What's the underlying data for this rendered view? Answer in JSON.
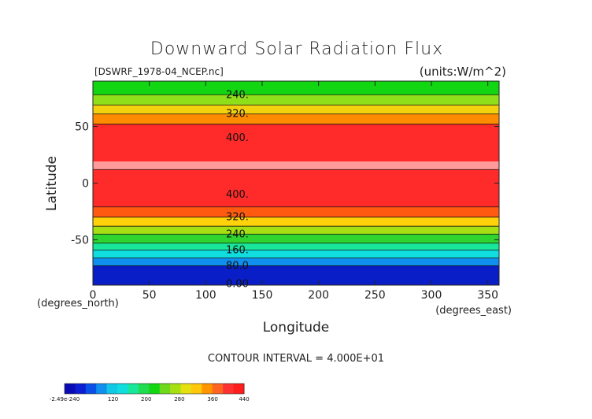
{
  "chart_data": {
    "type": "heatmap",
    "title": "Downward Solar Radiation Flux",
    "file_label": "[DSWRF_1978-04_NCEP.nc]",
    "units_label": "(units:W/m^2)",
    "xlabel": "Longitude",
    "ylabel": "Latitude",
    "x_unit_label": "(degrees_east)",
    "y_unit_label": "(degrees_north)",
    "xlim": [
      0,
      360
    ],
    "ylim": [
      -90,
      90
    ],
    "x_ticks": [
      "0",
      "50",
      "100",
      "150",
      "200",
      "250",
      "300",
      "350"
    ],
    "x_tick_values": [
      0,
      50,
      100,
      150,
      200,
      250,
      300,
      350
    ],
    "y_ticks": [
      "50",
      "0",
      "-50"
    ],
    "y_tick_values": [
      50,
      0,
      -50
    ],
    "contour_interval_text": "CONTOUR INTERVAL = 4.000E+01",
    "bands": [
      {
        "lat_top": 90,
        "lat_bottom": 78,
        "color": "#11d611"
      },
      {
        "lat_top": 78,
        "lat_bottom": 69,
        "color": "#8fe01a"
      },
      {
        "lat_top": 69,
        "lat_bottom": 61,
        "color": "#f3d10f"
      },
      {
        "lat_top": 61,
        "lat_bottom": 52,
        "color": "#ff8c00"
      },
      {
        "lat_top": 52,
        "lat_bottom": 19,
        "color": "#ff2a2a"
      },
      {
        "lat_top": 19,
        "lat_bottom": 12,
        "color": "#ff9a9a"
      },
      {
        "lat_top": 12,
        "lat_bottom": -21,
        "color": "#ff2a2a"
      },
      {
        "lat_top": -21,
        "lat_bottom": -30,
        "color": "#ff5a10"
      },
      {
        "lat_top": -30,
        "lat_bottom": -38,
        "color": "#ffd20a"
      },
      {
        "lat_top": -38,
        "lat_bottom": -45,
        "color": "#a6e012"
      },
      {
        "lat_top": -45,
        "lat_bottom": -53,
        "color": "#2fd42f"
      },
      {
        "lat_top": -53,
        "lat_bottom": -59,
        "color": "#18e69a"
      },
      {
        "lat_top": -59,
        "lat_bottom": -66,
        "color": "#10dede"
      },
      {
        "lat_top": -66,
        "lat_bottom": -73,
        "color": "#1090ee"
      },
      {
        "lat_top": -73,
        "lat_bottom": -90,
        "color": "#0a1ec8"
      }
    ],
    "contour_lines_lat": [
      78,
      69,
      61,
      52,
      12,
      -21,
      -30,
      -38,
      -45,
      -53,
      -59,
      -66,
      -73
    ],
    "contour_labels": [
      {
        "text": "240.",
        "lat": 78
      },
      {
        "text": "320.",
        "lat": 61
      },
      {
        "text": "400.",
        "lat": 40
      },
      {
        "text": "400.",
        "lat": -10
      },
      {
        "text": "320.",
        "lat": -30
      },
      {
        "text": "240.",
        "lat": -45
      },
      {
        "text": "160.",
        "lat": -59
      },
      {
        "text": "80.0",
        "lat": -73
      },
      {
        "text": "0.00",
        "lat": -89
      }
    ],
    "contour_label_lon": 128,
    "colorbar": {
      "ticks": [
        "-2.49e-240",
        "120",
        "200",
        "280",
        "360",
        "440"
      ],
      "tick_fracs": [
        0,
        0.27,
        0.455,
        0.64,
        0.825,
        1.0
      ],
      "colors": [
        "#0a0ab4",
        "#0a1ed2",
        "#0a50e6",
        "#1090ee",
        "#10c8e6",
        "#10dede",
        "#18e69a",
        "#20dc50",
        "#11d611",
        "#6ed81a",
        "#a6e012",
        "#e6e010",
        "#ffc80a",
        "#ff9600",
        "#ff6420",
        "#ff3232",
        "#ff1e1e"
      ]
    }
  }
}
